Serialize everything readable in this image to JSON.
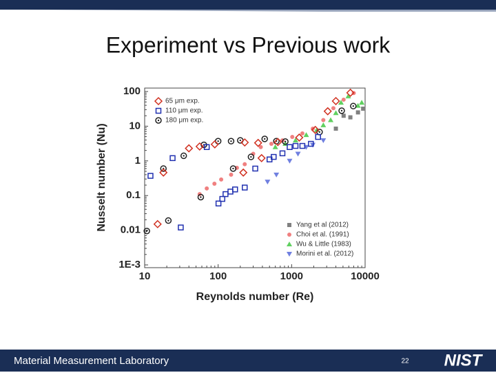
{
  "slide": {
    "title": "Experiment vs Previous work",
    "footer": "Material Measurement Laboratory",
    "page_number": "22",
    "logo": "NIST"
  },
  "chart_data": {
    "type": "scatter",
    "xlabel": "Reynolds number (Re)",
    "ylabel": "Nusselt number (Nu)",
    "xlim": [
      10,
      10000
    ],
    "ylim": [
      0.001,
      100
    ],
    "log_x": true,
    "log_y": true,
    "xticks": [
      10,
      100,
      1000,
      10000
    ],
    "yticks": [
      {
        "value": 0.001,
        "label": "1E-3"
      },
      0.01,
      0.1,
      1,
      10,
      100
    ],
    "series": [
      {
        "name": "65 μm exp.",
        "color": "#d03020",
        "marker": "diamond",
        "legend": "upper left",
        "x": [
          15,
          18,
          40,
          56,
          90,
          230,
          350,
          390,
          220,
          650,
          1270,
          2100,
          3100,
          4000,
          6300
        ],
        "values": [
          0.015,
          0.46,
          2.3,
          2.6,
          3,
          3.4,
          3.3,
          1.2,
          0.46,
          3.5,
          4.7,
          7.8,
          27,
          53,
          92
        ]
      },
      {
        "name": "110 μm exp.",
        "color": "#2030b0",
        "marker": "square",
        "legend": "upper left",
        "x": [
          12,
          24,
          31,
          70,
          101,
          114,
          126,
          147,
          170,
          230,
          320,
          500,
          570,
          750,
          940,
          1130,
          1400,
          1830,
          2290
        ],
        "values": [
          0.37,
          1.2,
          0.012,
          2.5,
          0.059,
          0.08,
          0.11,
          0.13,
          0.15,
          0.17,
          0.6,
          1.1,
          1.3,
          1.65,
          2.5,
          2.7,
          2.7,
          3.1,
          4.9
        ]
      },
      {
        "name": "180 μm exp.",
        "color": "#202020",
        "marker": "circle-dot",
        "legend": "upper left",
        "x": [
          10.7,
          18,
          21,
          34,
          58,
          64,
          100,
          160,
          150,
          200,
          280,
          430,
          620,
          820,
          2400,
          4800,
          6900
        ],
        "values": [
          0.0095,
          0.6,
          0.019,
          1.4,
          0.09,
          2.9,
          3.7,
          0.6,
          3.7,
          3.9,
          1.3,
          4.3,
          3.7,
          3.6,
          6.8,
          28,
          38
        ]
      },
      {
        "name": "Yang et al (2012)",
        "color": "#808080",
        "marker": "square-filled",
        "legend": "lower right",
        "x": [
          4000,
          5100,
          6300,
          8000,
          9400
        ],
        "values": [
          8.5,
          20,
          18,
          25,
          32
        ]
      },
      {
        "name": "Choi et al. (1991)",
        "color": "#f08080",
        "marker": "circle",
        "legend": "lower right",
        "x": [
          56,
          70,
          89,
          110,
          150,
          180,
          230,
          300,
          380,
          530,
          750,
          1020,
          1400,
          1940,
          2700,
          3700,
          5100,
          7000
        ],
        "values": [
          0.11,
          0.16,
          0.22,
          0.29,
          0.4,
          0.63,
          0.8,
          1.6,
          2.5,
          3.1,
          3.9,
          4.9,
          6.2,
          8.5,
          15,
          33,
          58,
          90
        ]
      },
      {
        "name": "Wu & Little (1983)",
        "color": "#60d060",
        "marker": "triangle-up",
        "legend": "lower right",
        "x": [
          600,
          820,
          1130,
          1580,
          2200,
          2700,
          3400,
          4000,
          4700,
          5900,
          8000,
          9000
        ],
        "values": [
          2.5,
          3.1,
          3.9,
          5.6,
          7.8,
          10.7,
          15,
          24,
          48,
          73,
          39,
          48
        ]
      },
      {
        "name": "Morini et al. (2012)",
        "color": "#7080e0",
        "marker": "triangle-down",
        "legend": "lower right",
        "x": [
          470,
          620,
          940,
          1220,
          1580,
          1940,
          2700
        ],
        "values": [
          0.25,
          0.4,
          1,
          1.6,
          2.5,
          2.9,
          3.9
        ]
      }
    ]
  }
}
